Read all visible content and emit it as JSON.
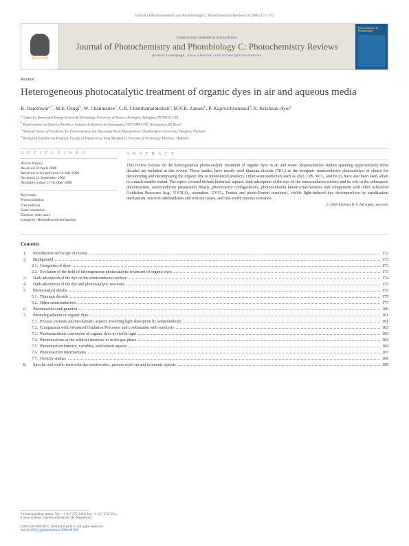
{
  "header": {
    "citation": "Journal of Photochemistry and Photobiology C: Photochemistry Reviews 9 (2008) 171–192"
  },
  "banner": {
    "publisher": "ELSEVIER",
    "contents_prefix": "Contents lists available at ",
    "contents_link": "ScienceDirect",
    "journal_name": "Journal of Photochemistry and Photobiology C: Photochemistry Reviews",
    "homepage_prefix": "journal homepage: ",
    "homepage_url": "www.elsevier.com/locate/jphotochemrev",
    "cover_text": "Photochemistry & Photobiology"
  },
  "article": {
    "type": "Review",
    "title": "Heterogeneous photocatalytic treatment of organic dyes in air and aqueous media",
    "authors_html": "K. Rajeshwar",
    "authors": [
      {
        "name": "K. Rajeshwar",
        "aff": "a,*"
      },
      {
        "name": "M.E. Osugi",
        "aff": "b"
      },
      {
        "name": "W. Chanmanee",
        "aff": "c"
      },
      {
        "name": "C.R. Chenthamarakshan",
        "aff": "a"
      },
      {
        "name": "M.V.B. Zanoni",
        "aff": "b"
      },
      {
        "name": "P. Kajitvichyanukul",
        "aff": "d"
      },
      {
        "name": "R. Krishnan-Ayer",
        "aff": "a"
      }
    ],
    "affiliations": [
      {
        "sup": "a",
        "text": "Center for Renewable Energy Science & Technology, University of Texas at Arlington, Arlington, TX 76019, USA"
      },
      {
        "sup": "b",
        "text": "Departamento de Química Analítica, Instituto de Química de Araraquara, CEP 14801-970, Araraquara, SP, Brazil"
      },
      {
        "sup": "c",
        "text": "National Center of Excellence for Environmental and Hazardous Waste Management, Chulalongkorn University, Bangkok, Thailand"
      },
      {
        "sup": "d",
        "text": "Biological Engineering Program, Faculty of Engineering, King Mongkut's University of Technology Thonburi, Thailand"
      }
    ]
  },
  "info": {
    "head": "A R T I C L E   I N F O",
    "history_label": "Article history:",
    "history": [
      "Received 24 April 2008",
      "Received in revised form 14 July 2008",
      "Accepted 21 September 2008",
      "Available online 17 October 2008"
    ],
    "keywords_label": "Keywords:",
    "keywords": [
      "Photooxidation",
      "Free radicals",
      "Solar irradiation",
      "Electron–hole pairs",
      "Langmuir–Hinshelwood mechanism"
    ]
  },
  "abstract": {
    "head": "A B S T R A C T",
    "body": "This review focuses on the heterogeneous photocatalytic treatment of organic dyes in air and water. Representative studies spanning approximately three decades are included in this review. These studies have mostly used titanium dioxide (TiO₂) as the inorganic semiconductor photocatalyst of choice for decolorizing and decomposing the organic dye to mineralized products. Other semiconductors such as ZnO, CdS, WO₃, and Fe₂O₃ have also been used, albeit to a much smaller extent. The topics covered include historical aspects, dark adsorption of the dye on the semiconductor surface and its role in the subsequent photoreaction, semiconductor preparation details, photoreactor configurations, photooxidation kinetics/mechanisms and comparison with other Advanced Oxidation Processes (e.g., UV/H₂O₂, ozonation, UV/O₃, Fenton and photo-Fenton reactions), visible light-induced dye decomposition by sensitization mechanism, reaction intermediates and toxicity issues, and real-world process scenarios.",
    "copyright": "© 2008 Elsevier B.V. All rights reserved."
  },
  "contents": {
    "head": "Contents",
    "items": [
      {
        "level": 1,
        "num": "1.",
        "text": "Introduction and scope of review",
        "page": "172"
      },
      {
        "level": 1,
        "num": "2.",
        "text": "Background",
        "page": "173"
      },
      {
        "level": 2,
        "num": "2.1.",
        "text": "Categories of dyes",
        "page": "173"
      },
      {
        "level": 2,
        "num": "2.2.",
        "text": "Evolution of the field of heterogeneous photocatalytic treatment of organic dyes",
        "page": "173"
      },
      {
        "level": 1,
        "num": "3.",
        "text": "Dark adsorption of the dye on the semiconductor surface",
        "page": "174"
      },
      {
        "level": 1,
        "num": "4.",
        "text": "Dark adsorption of the dye and photocatalytic reactions",
        "page": "175"
      },
      {
        "level": 1,
        "num": "5.",
        "text": "Photocatalyst details",
        "page": "175"
      },
      {
        "level": 2,
        "num": "5.1.",
        "text": "Titanium dioxide",
        "page": "175"
      },
      {
        "level": 2,
        "num": "5.2.",
        "text": "Other semiconductors",
        "page": "177"
      },
      {
        "level": 1,
        "num": "6.",
        "text": "Photoreactor configuration",
        "page": "180"
      },
      {
        "level": 1,
        "num": "7.",
        "text": "Photodegradation of organic dyes",
        "page": "181"
      },
      {
        "level": 2,
        "num": "7.1.",
        "text": "Process variants and mechanistic aspects involving light absorption by semiconductor",
        "page": "181"
      },
      {
        "level": 2,
        "num": "7.2.",
        "text": "Comparison with Advanced Oxidation Processes and combination with sonolysis",
        "page": "183"
      },
      {
        "level": 2,
        "num": "7.3.",
        "text": "Photosensitized conversion of organic dyes in visible light",
        "page": "183"
      },
      {
        "level": 2,
        "num": "7.4.",
        "text": "Photoreactions at the solid/air interface or in the gas phase",
        "page": "184"
      },
      {
        "level": 2,
        "num": "7.5.",
        "text": "Photoreaction kinetics, variables, and related aspects",
        "page": "184"
      },
      {
        "level": 2,
        "num": "7.6.",
        "text": "Photoreaction intermediates",
        "page": "187"
      },
      {
        "level": 2,
        "num": "7.7.",
        "text": "Toxicity studies",
        "page": "188"
      },
      {
        "level": 1,
        "num": "8.",
        "text": "Into the real world: tests with dye wastewaters, process scale-up and economic aspects",
        "page": "189"
      }
    ]
  },
  "footer": {
    "corr_label": "* Corresponding author. Tel.: +1 817 272 3492; fax: +1 817 272 3511.",
    "email_label": "E-mail address: ",
    "email": "rajeshwar@uta.edu",
    "email_suffix": " (K. Rajeshwar).",
    "issn": "1389-5567/$20.00 © 2008 Elsevier B.V. All rights reserved.",
    "doi": "doi:10.1016/j.jphotochemrev.2008.09.001"
  }
}
